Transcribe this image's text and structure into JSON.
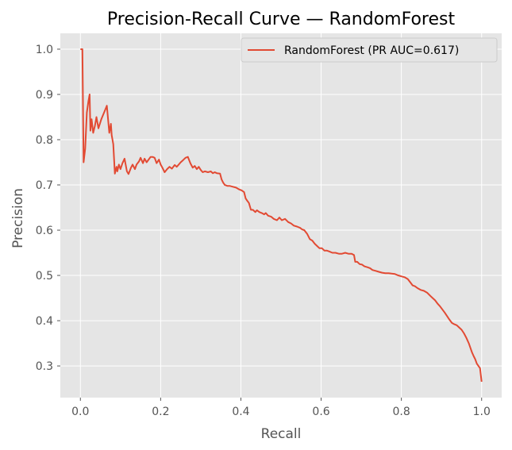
{
  "chart_data": {
    "type": "line",
    "title": "Precision-Recall Curve — RandomForest",
    "xlabel": "Recall",
    "ylabel": "Precision",
    "xlim": [
      -0.05,
      1.05
    ],
    "ylim": [
      0.23,
      1.035
    ],
    "xticks": [
      0.0,
      0.2,
      0.4,
      0.6,
      0.8,
      1.0
    ],
    "xtick_labels": [
      "0.0",
      "0.2",
      "0.4",
      "0.6",
      "0.8",
      "1.0"
    ],
    "yticks": [
      0.3,
      0.4,
      0.5,
      0.6,
      0.7,
      0.8,
      0.9,
      1.0
    ],
    "ytick_labels": [
      "0.3",
      "0.4",
      "0.5",
      "0.6",
      "0.7",
      "0.8",
      "0.9",
      "1.0"
    ],
    "grid": true,
    "legend_position": "top-right",
    "colors": {
      "background": "#E5E5E5",
      "grid": "#FFFFFF",
      "line": "#E24A33"
    },
    "series": [
      {
        "name": "RandomForest (PR AUC=0.617)",
        "x": [
          0.0,
          0.005,
          0.008,
          0.012,
          0.016,
          0.02,
          0.023,
          0.025,
          0.028,
          0.032,
          0.036,
          0.04,
          0.045,
          0.052,
          0.06,
          0.066,
          0.072,
          0.076,
          0.078,
          0.08,
          0.082,
          0.086,
          0.09,
          0.092,
          0.096,
          0.1,
          0.105,
          0.11,
          0.116,
          0.12,
          0.126,
          0.13,
          0.136,
          0.14,
          0.146,
          0.15,
          0.156,
          0.16,
          0.165,
          0.17,
          0.175,
          0.18,
          0.185,
          0.19,
          0.196,
          0.2,
          0.205,
          0.21,
          0.216,
          0.222,
          0.228,
          0.235,
          0.24,
          0.245,
          0.25,
          0.256,
          0.262,
          0.268,
          0.274,
          0.28,
          0.285,
          0.29,
          0.295,
          0.3,
          0.305,
          0.31,
          0.318,
          0.325,
          0.33,
          0.335,
          0.34,
          0.348,
          0.352,
          0.356,
          0.36,
          0.366,
          0.372,
          0.38,
          0.388,
          0.396,
          0.402,
          0.405,
          0.408,
          0.412,
          0.416,
          0.42,
          0.425,
          0.43,
          0.436,
          0.44,
          0.446,
          0.452,
          0.458,
          0.462,
          0.468,
          0.475,
          0.482,
          0.49,
          0.496,
          0.502,
          0.51,
          0.518,
          0.525,
          0.532,
          0.54,
          0.548,
          0.552,
          0.558,
          0.565,
          0.572,
          0.578,
          0.584,
          0.59,
          0.596,
          0.602,
          0.608,
          0.614,
          0.62,
          0.628,
          0.636,
          0.644,
          0.652,
          0.66,
          0.668,
          0.676,
          0.682,
          0.685,
          0.69,
          0.696,
          0.702,
          0.708,
          0.716,
          0.722,
          0.728,
          0.736,
          0.744,
          0.752,
          0.76,
          0.768,
          0.776,
          0.784,
          0.792,
          0.8,
          0.808,
          0.816,
          0.822,
          0.828,
          0.834,
          0.84,
          0.848,
          0.856,
          0.864,
          0.872,
          0.878,
          0.884,
          0.89,
          0.896,
          0.902,
          0.908,
          0.914,
          0.92,
          0.926,
          0.932,
          0.938,
          0.944,
          0.95,
          0.956,
          0.962,
          0.968,
          0.972,
          0.976,
          0.98,
          0.984,
          0.988,
          0.992,
          0.996,
          1.0
        ],
        "y": [
          1.0,
          1.0,
          0.75,
          0.78,
          0.86,
          0.885,
          0.9,
          0.82,
          0.845,
          0.815,
          0.83,
          0.85,
          0.825,
          0.845,
          0.862,
          0.875,
          0.815,
          0.835,
          0.81,
          0.8,
          0.79,
          0.725,
          0.74,
          0.73,
          0.745,
          0.735,
          0.748,
          0.758,
          0.73,
          0.724,
          0.738,
          0.745,
          0.735,
          0.745,
          0.752,
          0.76,
          0.748,
          0.758,
          0.75,
          0.756,
          0.762,
          0.762,
          0.76,
          0.748,
          0.756,
          0.745,
          0.737,
          0.728,
          0.735,
          0.74,
          0.736,
          0.744,
          0.74,
          0.745,
          0.75,
          0.755,
          0.76,
          0.762,
          0.748,
          0.738,
          0.742,
          0.735,
          0.74,
          0.733,
          0.728,
          0.73,
          0.728,
          0.73,
          0.726,
          0.728,
          0.726,
          0.725,
          0.712,
          0.705,
          0.7,
          0.698,
          0.698,
          0.696,
          0.694,
          0.69,
          0.688,
          0.686,
          0.684,
          0.67,
          0.665,
          0.66,
          0.645,
          0.645,
          0.64,
          0.644,
          0.64,
          0.638,
          0.635,
          0.638,
          0.632,
          0.63,
          0.625,
          0.622,
          0.628,
          0.622,
          0.625,
          0.618,
          0.615,
          0.61,
          0.608,
          0.605,
          0.602,
          0.6,
          0.592,
          0.58,
          0.577,
          0.57,
          0.565,
          0.56,
          0.56,
          0.555,
          0.555,
          0.553,
          0.55,
          0.55,
          0.548,
          0.548,
          0.55,
          0.548,
          0.548,
          0.545,
          0.53,
          0.53,
          0.525,
          0.524,
          0.52,
          0.518,
          0.516,
          0.512,
          0.51,
          0.508,
          0.506,
          0.505,
          0.505,
          0.504,
          0.503,
          0.5,
          0.498,
          0.496,
          0.492,
          0.485,
          0.478,
          0.476,
          0.472,
          0.468,
          0.466,
          0.462,
          0.455,
          0.45,
          0.445,
          0.438,
          0.432,
          0.425,
          0.418,
          0.41,
          0.402,
          0.395,
          0.392,
          0.39,
          0.385,
          0.38,
          0.372,
          0.362,
          0.35,
          0.34,
          0.33,
          0.322,
          0.315,
          0.305,
          0.3,
          0.295,
          0.265
        ]
      }
    ]
  }
}
